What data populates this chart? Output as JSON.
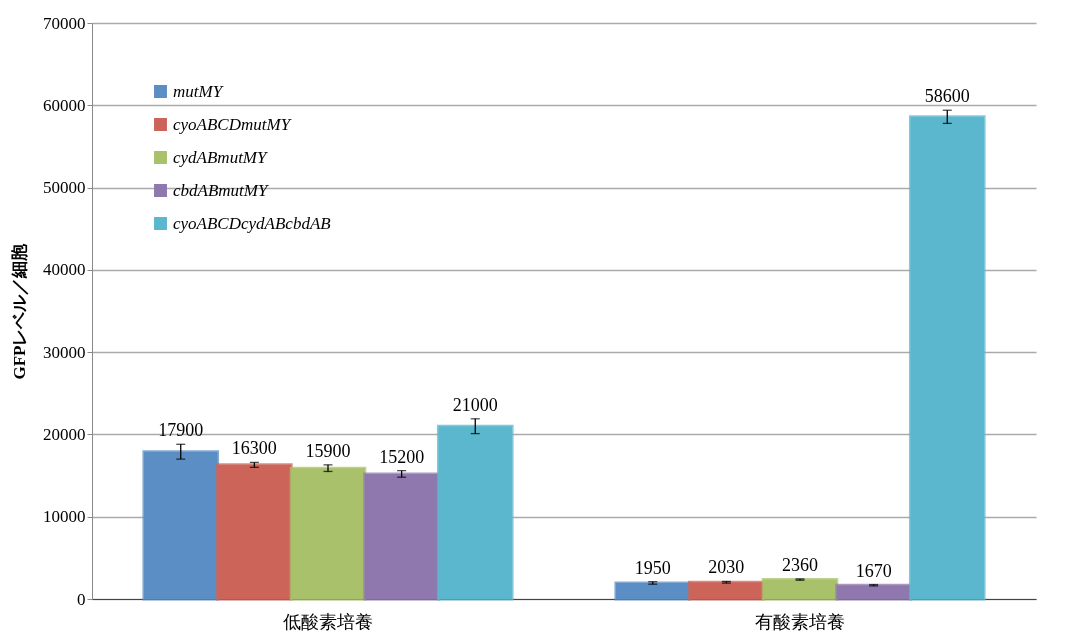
{
  "chart_data": {
    "type": "bar",
    "ylabel": "GFPレベル／細胞",
    "categories": [
      "低酸素培養",
      "有酸素培養"
    ],
    "series": [
      {
        "name": "mutMY",
        "color": "#5b8ec4",
        "values": [
          17900,
          1950
        ],
        "errors": [
          900,
          150
        ]
      },
      {
        "name": "cyoABCDmutMY",
        "color": "#cc645a",
        "values": [
          16300,
          2030
        ],
        "errors": [
          300,
          100
        ]
      },
      {
        "name": "cydABmutMY",
        "color": "#a8c16a",
        "values": [
          15900,
          2360
        ],
        "errors": [
          400,
          80
        ]
      },
      {
        "name": "cbdABmutMY",
        "color": "#8f78ae",
        "values": [
          15200,
          1670
        ],
        "errors": [
          400,
          80
        ]
      },
      {
        "name": "cyoABCDcydABcbdAB",
        "color": "#5ab7cd",
        "values": [
          21000,
          58600
        ],
        "errors": [
          900,
          800
        ]
      }
    ],
    "ylim": [
      0,
      70000
    ],
    "yticks": [
      0,
      10000,
      20000,
      30000,
      40000,
      50000,
      60000,
      70000
    ],
    "grid": "y",
    "legend": "top left",
    "data_labels": true
  }
}
